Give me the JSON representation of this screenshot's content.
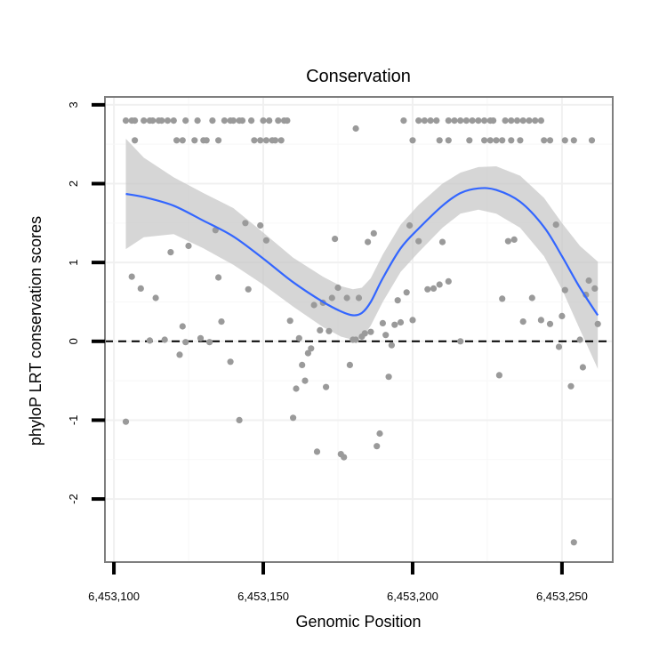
{
  "chart_data": {
    "type": "scatter",
    "title": "Conservation",
    "xlabel": "Genomic Position",
    "ylabel": "phyloP LRT conservation scores",
    "xlim": [
      6453097,
      6453267
    ],
    "ylim": [
      -2.8,
      3.1
    ],
    "x_ticks": [
      6453100,
      6453150,
      6453200,
      6453250
    ],
    "x_tick_labels": [
      "6,453,100",
      "6,453,150",
      "6,453,200",
      "6,453,250"
    ],
    "y_ticks": [
      -2,
      -1,
      0,
      1,
      2,
      3
    ],
    "y_tick_labels": [
      "-2",
      "-1",
      "0",
      "1",
      "2",
      "3"
    ],
    "reference_line": {
      "y": 0,
      "style": "dashed"
    },
    "grid": true,
    "legend": "none",
    "colors": {
      "points": "#9a9a9a",
      "smooth": "#3366ff",
      "band": "#c8c8c8",
      "reference": "#000000"
    },
    "points": [
      [
        6453104,
        2.8
      ],
      [
        6453106,
        2.8
      ],
      [
        6453107,
        2.8
      ],
      [
        6453110,
        2.8
      ],
      [
        6453112,
        2.8
      ],
      [
        6453113,
        2.8
      ],
      [
        6453115,
        2.8
      ],
      [
        6453116,
        2.8
      ],
      [
        6453118,
        2.8
      ],
      [
        6453120,
        2.8
      ],
      [
        6453124,
        2.8
      ],
      [
        6453128,
        2.8
      ],
      [
        6453133,
        2.8
      ],
      [
        6453137,
        2.8
      ],
      [
        6453139,
        2.8
      ],
      [
        6453140,
        2.8
      ],
      [
        6453142,
        2.8
      ],
      [
        6453143,
        2.8
      ],
      [
        6453146,
        2.8
      ],
      [
        6453150,
        2.8
      ],
      [
        6453152,
        2.8
      ],
      [
        6453155,
        2.8
      ],
      [
        6453157,
        2.8
      ],
      [
        6453158,
        2.8
      ],
      [
        6453181,
        2.7
      ],
      [
        6453197,
        2.8
      ],
      [
        6453202,
        2.8
      ],
      [
        6453204,
        2.8
      ],
      [
        6453206,
        2.8
      ],
      [
        6453208,
        2.8
      ],
      [
        6453212,
        2.8
      ],
      [
        6453214,
        2.8
      ],
      [
        6453216,
        2.8
      ],
      [
        6453218,
        2.8
      ],
      [
        6453220,
        2.8
      ],
      [
        6453222,
        2.8
      ],
      [
        6453224,
        2.8
      ],
      [
        6453226,
        2.8
      ],
      [
        6453227,
        2.8
      ],
      [
        6453231,
        2.8
      ],
      [
        6453233,
        2.8
      ],
      [
        6453235,
        2.8
      ],
      [
        6453237,
        2.8
      ],
      [
        6453239,
        2.8
      ],
      [
        6453241,
        2.8
      ],
      [
        6453243,
        2.8
      ],
      [
        6453107,
        2.55
      ],
      [
        6453121,
        2.55
      ],
      [
        6453123,
        2.55
      ],
      [
        6453127,
        2.55
      ],
      [
        6453130,
        2.55
      ],
      [
        6453131,
        2.55
      ],
      [
        6453135,
        2.55
      ],
      [
        6453147,
        2.55
      ],
      [
        6453149,
        2.55
      ],
      [
        6453151,
        2.55
      ],
      [
        6453153,
        2.55
      ],
      [
        6453154,
        2.55
      ],
      [
        6453156,
        2.55
      ],
      [
        6453200,
        2.55
      ],
      [
        6453209,
        2.55
      ],
      [
        6453212,
        2.55
      ],
      [
        6453219,
        2.55
      ],
      [
        6453224,
        2.55
      ],
      [
        6453226,
        2.55
      ],
      [
        6453228,
        2.55
      ],
      [
        6453230,
        2.55
      ],
      [
        6453233,
        2.55
      ],
      [
        6453236,
        2.55
      ],
      [
        6453244,
        2.55
      ],
      [
        6453246,
        2.55
      ],
      [
        6453251,
        2.55
      ],
      [
        6453254,
        2.55
      ],
      [
        6453260,
        2.55
      ],
      [
        6453104,
        -1.02
      ],
      [
        6453106,
        0.82
      ],
      [
        6453109,
        0.67
      ],
      [
        6453112,
        0.01
      ],
      [
        6453114,
        0.55
      ],
      [
        6453117,
        0.02
      ],
      [
        6453119,
        1.13
      ],
      [
        6453122,
        -0.17
      ],
      [
        6453123,
        0.19
      ],
      [
        6453124,
        -0.01
      ],
      [
        6453125,
        1.21
      ],
      [
        6453129,
        0.04
      ],
      [
        6453132,
        -0.01
      ],
      [
        6453134,
        1.41
      ],
      [
        6453135,
        0.81
      ],
      [
        6453136,
        0.25
      ],
      [
        6453139,
        -0.26
      ],
      [
        6453142,
        -1.0
      ],
      [
        6453144,
        1.5
      ],
      [
        6453145,
        0.66
      ],
      [
        6453149,
        1.47
      ],
      [
        6453151,
        1.28
      ],
      [
        6453159,
        0.26
      ],
      [
        6453160,
        -0.97
      ],
      [
        6453161,
        -0.6
      ],
      [
        6453162,
        0.04
      ],
      [
        6453163,
        -0.3
      ],
      [
        6453164,
        -0.5
      ],
      [
        6453165,
        -0.15
      ],
      [
        6453166,
        -0.09
      ],
      [
        6453167,
        0.46
      ],
      [
        6453168,
        -1.4
      ],
      [
        6453169,
        0.14
      ],
      [
        6453170,
        0.49
      ],
      [
        6453171,
        -0.58
      ],
      [
        6453172,
        0.13
      ],
      [
        6453173,
        0.55
      ],
      [
        6453174,
        1.3
      ],
      [
        6453175,
        0.68
      ],
      [
        6453176,
        -1.43
      ],
      [
        6453177,
        -1.47
      ],
      [
        6453178,
        0.55
      ],
      [
        6453179,
        -0.3
      ],
      [
        6453180,
        0.02
      ],
      [
        6453181,
        0.02
      ],
      [
        6453182,
        0.55
      ],
      [
        6453183,
        0.06
      ],
      [
        6453184,
        0.1
      ],
      [
        6453185,
        1.26
      ],
      [
        6453186,
        0.12
      ],
      [
        6453187,
        1.37
      ],
      [
        6453188,
        -1.33
      ],
      [
        6453189,
        -1.17
      ],
      [
        6453190,
        0.23
      ],
      [
        6453191,
        0.08
      ],
      [
        6453192,
        -0.45
      ],
      [
        6453193,
        -0.05
      ],
      [
        6453194,
        0.21
      ],
      [
        6453195,
        0.52
      ],
      [
        6453196,
        0.24
      ],
      [
        6453198,
        0.62
      ],
      [
        6453199,
        1.47
      ],
      [
        6453200,
        0.27
      ],
      [
        6453202,
        1.27
      ],
      [
        6453205,
        0.66
      ],
      [
        6453207,
        0.67
      ],
      [
        6453209,
        0.72
      ],
      [
        6453210,
        1.26
      ],
      [
        6453212,
        0.76
      ],
      [
        6453216,
        0.0
      ],
      [
        6453229,
        -0.43
      ],
      [
        6453230,
        0.54
      ],
      [
        6453232,
        1.27
      ],
      [
        6453234,
        1.29
      ],
      [
        6453237,
        0.25
      ],
      [
        6453240,
        0.55
      ],
      [
        6453243,
        0.27
      ],
      [
        6453246,
        0.22
      ],
      [
        6453248,
        1.48
      ],
      [
        6453249,
        -0.07
      ],
      [
        6453250,
        0.32
      ],
      [
        6453251,
        0.65
      ],
      [
        6453253,
        -0.57
      ],
      [
        6453254,
        -2.55
      ],
      [
        6453256,
        0.02
      ],
      [
        6453257,
        -0.33
      ],
      [
        6453258,
        0.59
      ],
      [
        6453259,
        0.77
      ],
      [
        6453261,
        0.67
      ],
      [
        6453262,
        0.22
      ]
    ],
    "smooth": [
      [
        6453104,
        1.87,
        1.17,
        2.57
      ],
      [
        6453110,
        1.83,
        1.32,
        2.33
      ],
      [
        6453120,
        1.72,
        1.36,
        2.08
      ],
      [
        6453130,
        1.53,
        1.18,
        1.88
      ],
      [
        6453140,
        1.33,
        0.97,
        1.69
      ],
      [
        6453150,
        1.05,
        0.72,
        1.38
      ],
      [
        6453160,
        0.75,
        0.44,
        1.06
      ],
      [
        6453170,
        0.5,
        0.18,
        0.82
      ],
      [
        6453176,
        0.38,
        0.06,
        0.7
      ],
      [
        6453180,
        0.33,
        0.02,
        0.66
      ],
      [
        6453183,
        0.36,
        0.04,
        0.68
      ],
      [
        6453186,
        0.5,
        0.2,
        0.8
      ],
      [
        6453190,
        0.8,
        0.5,
        1.1
      ],
      [
        6453196,
        1.18,
        0.88,
        1.48
      ],
      [
        6453202,
        1.43,
        1.13,
        1.73
      ],
      [
        6453210,
        1.72,
        1.44,
        2.0
      ],
      [
        6453216,
        1.88,
        1.62,
        2.14
      ],
      [
        6453222,
        1.94,
        1.67,
        2.21
      ],
      [
        6453228,
        1.92,
        1.62,
        2.22
      ],
      [
        6453236,
        1.77,
        1.44,
        2.1
      ],
      [
        6453244,
        1.45,
        1.08,
        1.82
      ],
      [
        6453250,
        1.08,
        0.66,
        1.5
      ],
      [
        6453256,
        0.68,
        0.15,
        1.21
      ],
      [
        6453262,
        0.33,
        -0.35,
        1.01
      ]
    ]
  }
}
